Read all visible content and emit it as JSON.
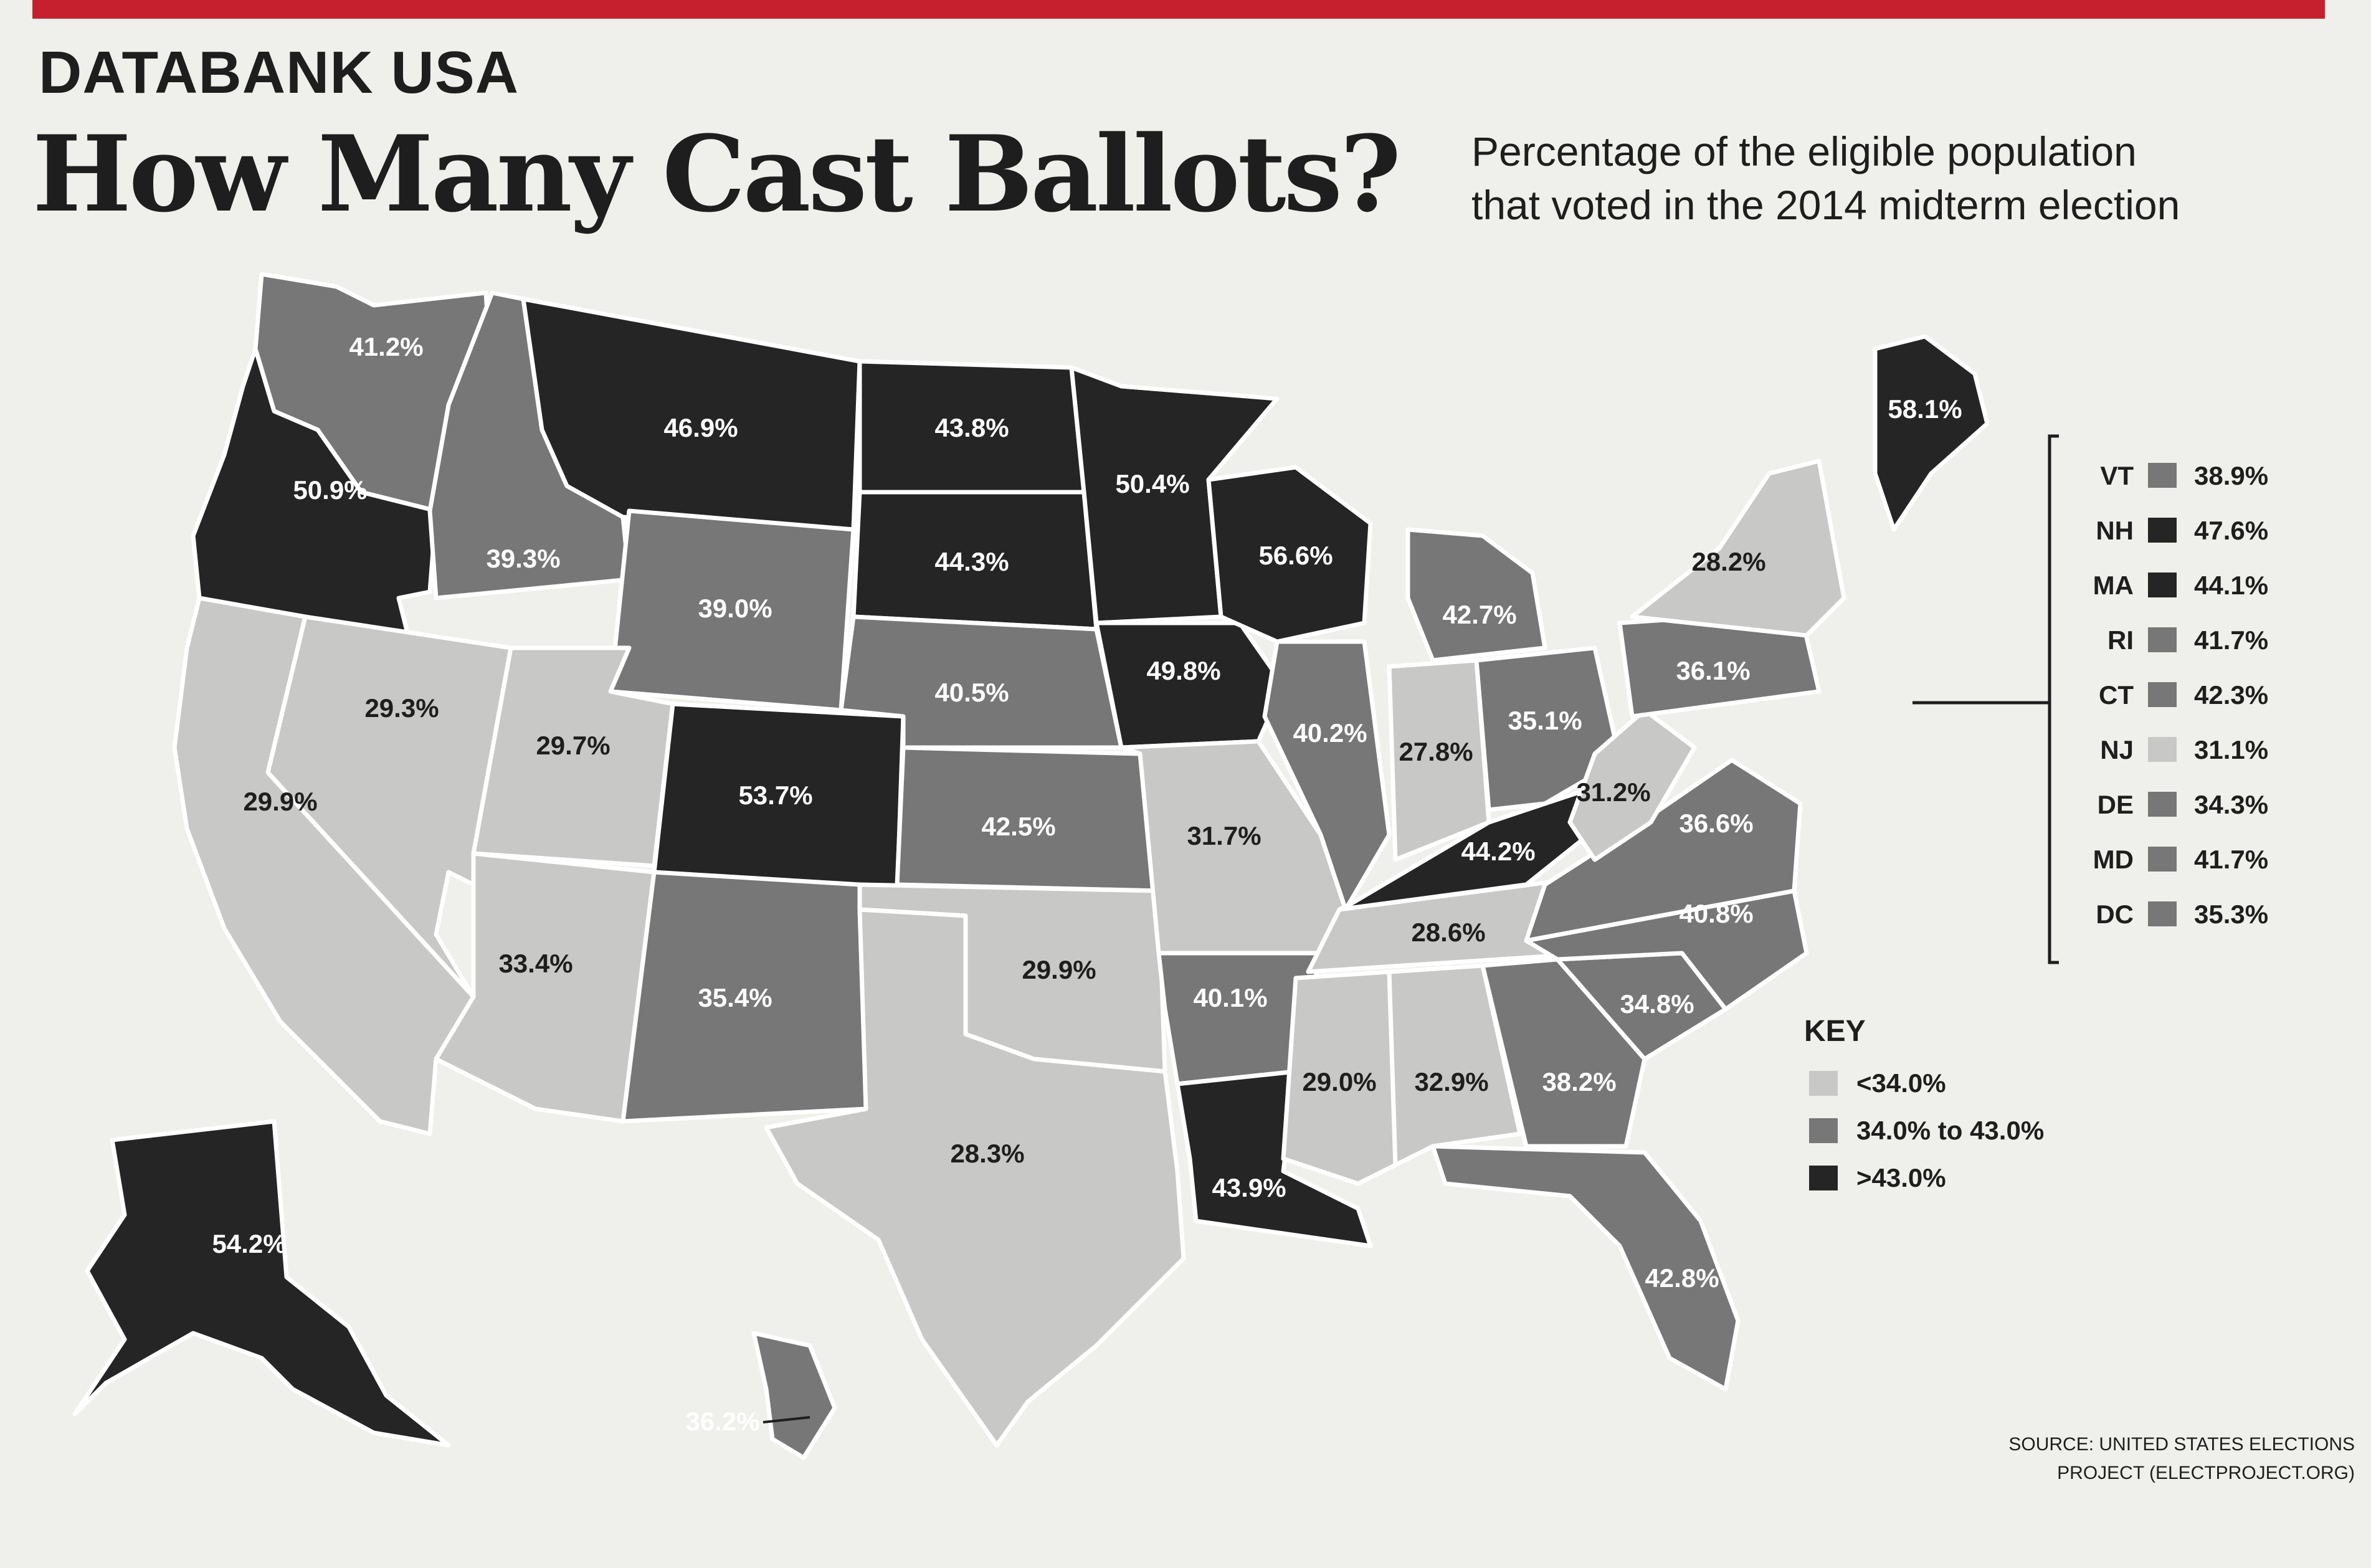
{
  "header": {
    "kicker": "DATABANK USA",
    "title": "How Many Cast Ballots?",
    "subtitle_line1": "Percentage of the eligible population",
    "subtitle_line2": "that voted in the 2014 midterm election"
  },
  "colors": {
    "low": "#c8c8c6",
    "mid": "#777777",
    "high": "#252525",
    "accent": "#c6202e"
  },
  "key": {
    "title": "KEY",
    "items": [
      {
        "label": "<34.0%",
        "level": "low"
      },
      {
        "label": "34.0% to 43.0%",
        "level": "mid"
      },
      {
        "label": ">43.0%",
        "level": "high"
      }
    ]
  },
  "legend_small_states": [
    {
      "abbr": "VT",
      "value": "38.9%",
      "level": "mid"
    },
    {
      "abbr": "NH",
      "value": "47.6%",
      "level": "high"
    },
    {
      "abbr": "MA",
      "value": "44.1%",
      "level": "high"
    },
    {
      "abbr": "RI",
      "value": "41.7%",
      "level": "mid"
    },
    {
      "abbr": "CT",
      "value": "42.3%",
      "level": "mid"
    },
    {
      "abbr": "NJ",
      "value": "31.1%",
      "level": "low"
    },
    {
      "abbr": "DE",
      "value": "34.3%",
      "level": "mid"
    },
    {
      "abbr": "MD",
      "value": "41.7%",
      "level": "mid"
    },
    {
      "abbr": "DC",
      "value": "35.3%",
      "level": "mid"
    }
  ],
  "states": [
    {
      "id": "WA",
      "value": "41.2%",
      "level": "mid"
    },
    {
      "id": "OR",
      "value": "50.9%",
      "level": "high"
    },
    {
      "id": "CA",
      "value": "29.9%",
      "level": "low"
    },
    {
      "id": "ID",
      "value": "39.3%",
      "level": "mid"
    },
    {
      "id": "NV",
      "value": "29.3%",
      "level": "low"
    },
    {
      "id": "MT",
      "value": "46.9%",
      "level": "high"
    },
    {
      "id": "WY",
      "value": "39.0%",
      "level": "mid"
    },
    {
      "id": "UT",
      "value": "29.7%",
      "level": "low"
    },
    {
      "id": "AZ",
      "value": "33.4%",
      "level": "low"
    },
    {
      "id": "CO",
      "value": "53.7%",
      "level": "high"
    },
    {
      "id": "NM",
      "value": "35.4%",
      "level": "mid"
    },
    {
      "id": "ND",
      "value": "43.8%",
      "level": "high"
    },
    {
      "id": "SD",
      "value": "44.3%",
      "level": "high"
    },
    {
      "id": "NE",
      "value": "40.5%",
      "level": "mid"
    },
    {
      "id": "KS",
      "value": "42.5%",
      "level": "mid"
    },
    {
      "id": "OK",
      "value": "29.9%",
      "level": "low"
    },
    {
      "id": "TX",
      "value": "28.3%",
      "level": "low"
    },
    {
      "id": "MN",
      "value": "50.4%",
      "level": "high"
    },
    {
      "id": "IA",
      "value": "49.8%",
      "level": "high"
    },
    {
      "id": "MO",
      "value": "31.7%",
      "level": "low"
    },
    {
      "id": "AR",
      "value": "40.1%",
      "level": "mid"
    },
    {
      "id": "LA",
      "value": "43.9%",
      "level": "high"
    },
    {
      "id": "WI",
      "value": "56.6%",
      "level": "high"
    },
    {
      "id": "IL",
      "value": "40.2%",
      "level": "mid"
    },
    {
      "id": "MI",
      "value": "42.7%",
      "level": "mid"
    },
    {
      "id": "IN",
      "value": "27.8%",
      "level": "low"
    },
    {
      "id": "OH",
      "value": "35.1%",
      "level": "mid"
    },
    {
      "id": "KY",
      "value": "44.2%",
      "level": "high"
    },
    {
      "id": "TN",
      "value": "28.6%",
      "level": "low"
    },
    {
      "id": "MS",
      "value": "29.0%",
      "level": "low"
    },
    {
      "id": "AL",
      "value": "32.9%",
      "level": "low"
    },
    {
      "id": "GA",
      "value": "38.2%",
      "level": "mid"
    },
    {
      "id": "FL",
      "value": "42.8%",
      "level": "mid"
    },
    {
      "id": "SC",
      "value": "34.8%",
      "level": "mid"
    },
    {
      "id": "NC",
      "value": "40.8%",
      "level": "mid"
    },
    {
      "id": "VA",
      "value": "36.6%",
      "level": "mid"
    },
    {
      "id": "WV",
      "value": "31.2%",
      "level": "low"
    },
    {
      "id": "PA",
      "value": "36.1%",
      "level": "mid"
    },
    {
      "id": "NY",
      "value": "28.2%",
      "level": "low"
    },
    {
      "id": "ME",
      "value": "58.1%",
      "level": "high"
    },
    {
      "id": "AK",
      "value": "54.2%",
      "level": "high"
    },
    {
      "id": "HI",
      "value": "36.2%",
      "level": "mid"
    }
  ],
  "source_line1": "SOURCE: UNITED STATES ELECTIONS",
  "source_line2": "PROJECT (ELECTPROJECT.ORG)"
}
